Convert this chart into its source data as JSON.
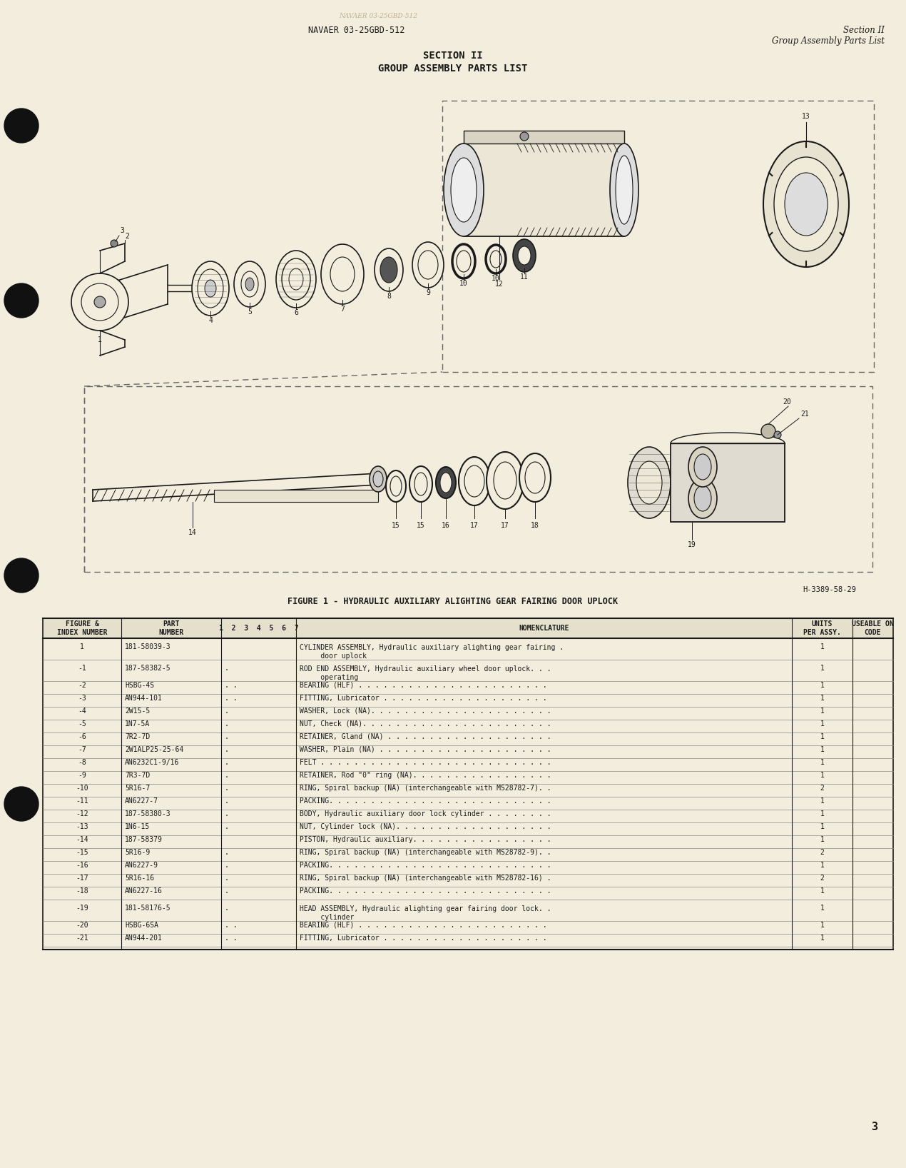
{
  "bg_color": "#f2eddc",
  "header_left": "NAVAER 03-25GBD-512",
  "header_right_line1": "Section II",
  "header_right_line2": "Group Assembly Parts List",
  "section_title": "SECTION II",
  "section_subtitle": "GROUP ASSEMBLY PARTS LIST",
  "figure_caption": "FIGURE 1 - HYDRAULIC AUXILIARY ALIGHTING GEAR FAIRING DOOR UPLOCK",
  "figure_ref": "H-3389-58-29",
  "page_number": "3",
  "table_rows": [
    [
      "1",
      "181-58039-3",
      "",
      "CYLINDER ASSEMBLY, Hydraulic auxiliary alighting gear fairing .",
      "1",
      "two_line",
      "     door uplock"
    ],
    [
      "-1",
      "187-58382-5",
      ".",
      "ROD END ASSEMBLY, Hydraulic auxiliary wheel door uplock. . .",
      "1",
      "two_line",
      "     operating"
    ],
    [
      "-2",
      "HSBG-4S",
      ". .",
      "BEARING (HLF) . . . . . . . . . . . . . . . . . . . . . . .",
      "1",
      "one_line",
      ""
    ],
    [
      "-3",
      "AN944-101",
      ". .",
      "FITTING, Lubricator . . . . . . . . . . . . . . . . . . . .",
      "1",
      "one_line",
      ""
    ],
    [
      "-4",
      "2W15-5",
      ".",
      "WASHER, Lock (NA). . . . . . . . . . . . . . . . . . . . . .",
      "1",
      "one_line",
      ""
    ],
    [
      "-5",
      "1N7-5A",
      ".",
      "NUT, Check (NA). . . . . . . . . . . . . . . . . . . . . . .",
      "1",
      "one_line",
      ""
    ],
    [
      "-6",
      "7R2-7D",
      ".",
      "RETAINER, Gland (NA) . . . . . . . . . . . . . . . . . . . .",
      "1",
      "one_line",
      ""
    ],
    [
      "-7",
      "2W1ALP25-25-64",
      ".",
      "WASHER, Plain (NA) . . . . . . . . . . . . . . . . . . . . .",
      "1",
      "one_line",
      ""
    ],
    [
      "-8",
      "AN6232C1-9/16",
      ".",
      "FELT . . . . . . . . . . . . . . . . . . . . . . . . . . . .",
      "1",
      "one_line",
      ""
    ],
    [
      "-9",
      "7R3-7D",
      ".",
      "RETAINER, Rod \"0\" ring (NA). . . . . . . . . . . . . . . . .",
      "1",
      "one_line",
      ""
    ],
    [
      "-10",
      "5R16-7",
      ".",
      "RING, Spiral backup (NA) (interchangeable with MS28782-7). .",
      "2",
      "one_line",
      ""
    ],
    [
      "-11",
      "AN6227-7",
      ".",
      "PACKING. . . . . . . . . . . . . . . . . . . . . . . . . . .",
      "1",
      "one_line",
      ""
    ],
    [
      "-12",
      "187-58380-3",
      ".",
      "BODY, Hydraulic auxiliary door lock cylinder . . . . . . . .",
      "1",
      "one_line",
      ""
    ],
    [
      "-13",
      "1N6-15",
      ".",
      "NUT, Cylinder lock (NA). . . . . . . . . . . . . . . . . . .",
      "1",
      "one_line",
      ""
    ],
    [
      "-14",
      "187-58379",
      "",
      "PISTON, Hydraulic auxiliary. . . . . . . . . . . . . . . . .",
      "1",
      "one_line",
      ""
    ],
    [
      "-15",
      "5R16-9",
      ".",
      "RING, Spiral backup (NA) (interchangeable with MS28782-9). .",
      "2",
      "one_line",
      ""
    ],
    [
      "-16",
      "AN6227-9",
      ".",
      "PACKING. . . . . . . . . . . . . . . . . . . . . . . . . . .",
      "1",
      "one_line",
      ""
    ],
    [
      "-17",
      "5R16-16",
      ".",
      "RING, Spiral backup (NA) (interchangeable with MS28782-16) .",
      "2",
      "one_line",
      ""
    ],
    [
      "-18",
      "AN6227-16",
      ".",
      "PACKING. . . . . . . . . . . . . . . . . . . . . . . . . . .",
      "1",
      "one_line",
      ""
    ],
    [
      "-19",
      "181-58176-5",
      ".",
      "HEAD ASSEMBLY, Hydraulic alighting gear fairing door lock. .",
      "1",
      "two_line",
      "     cylinder"
    ],
    [
      "-20",
      "HSBG-6SA",
      ". .",
      "BEARING (HLF) . . . . . . . . . . . . . . . . . . . . . . .",
      "1",
      "one_line",
      ""
    ],
    [
      "-21",
      "AN944-201",
      ". .",
      "FITTING, Lubricator . . . . . . . . . . . . . . . . . . . .",
      "1",
      "one_line",
      ""
    ]
  ]
}
